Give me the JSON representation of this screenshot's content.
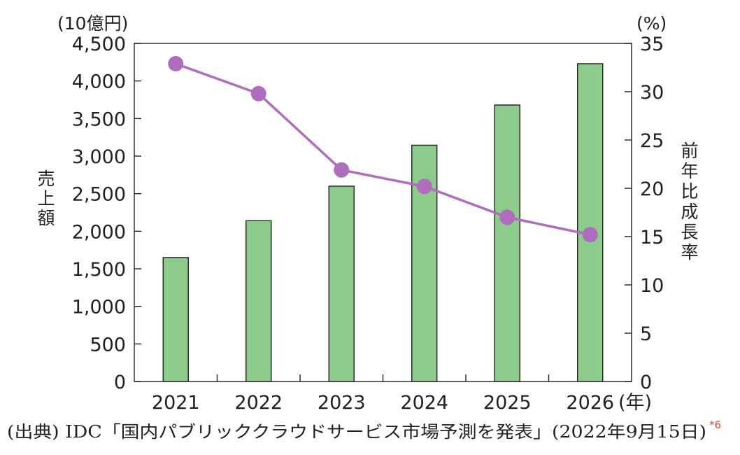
{
  "chart_data": {
    "type": "bar+line",
    "categories": [
      "2021",
      "2022",
      "2023",
      "2024",
      "2025",
      "2026"
    ],
    "x_unit": "(年)",
    "bar_series": {
      "ylabel": "売上額",
      "unit": "(10億円)",
      "ylim": [
        0,
        4500
      ],
      "ticks": [
        "0",
        "500",
        "1,000",
        "1,500",
        "2,000",
        "2,500",
        "3,000",
        "3,500",
        "4,000",
        "4,500"
      ],
      "values": [
        1650,
        2140,
        2600,
        3145,
        3680,
        4230
      ],
      "color": "#8ccb8c"
    },
    "line_series": {
      "ylabel": "前年比成長率",
      "unit": "(%)",
      "ylim": [
        0,
        35
      ],
      "ticks": [
        "0",
        "5",
        "10",
        "15",
        "20",
        "25",
        "30",
        "35"
      ],
      "values": [
        32.9,
        29.8,
        21.9,
        20.2,
        17.0,
        15.2
      ],
      "color": "#b06dbd"
    },
    "grid": false,
    "source": "(出典) IDC「国内パブリッククラウドサービス市場予測を発表」(2022年9月15日)",
    "note": "*6"
  }
}
